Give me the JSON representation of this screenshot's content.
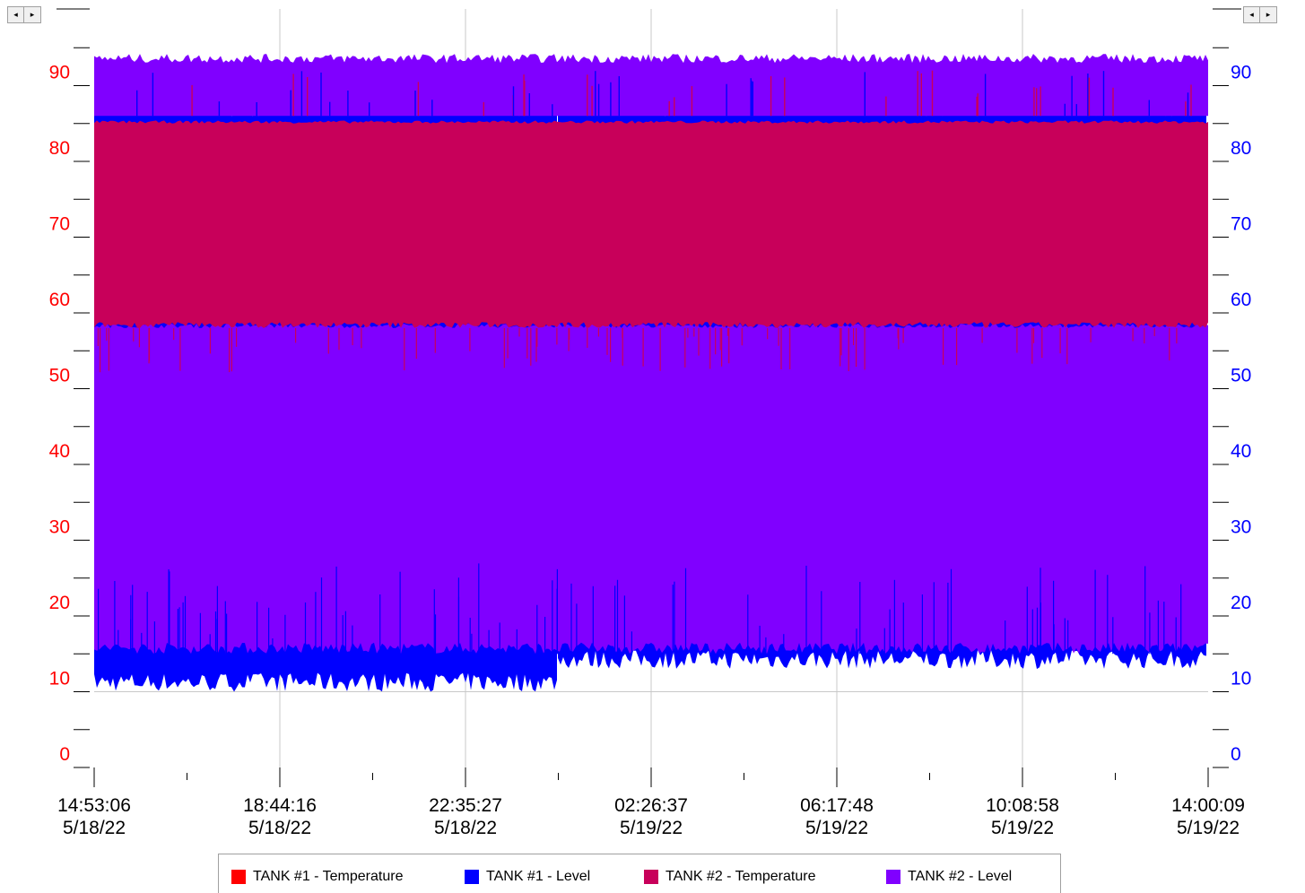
{
  "chart_data": {
    "type": "area",
    "x_ticks": [
      {
        "time": "14:53:06",
        "date": "5/18/22"
      },
      {
        "time": "18:44:16",
        "date": "5/18/22"
      },
      {
        "time": "22:35:27",
        "date": "5/18/22"
      },
      {
        "time": "02:26:37",
        "date": "5/19/22"
      },
      {
        "time": "06:17:48",
        "date": "5/19/22"
      },
      {
        "time": "10:08:58",
        "date": "5/19/22"
      },
      {
        "time": "14:00:09",
        "date": "5/19/22"
      }
    ],
    "x_range": [
      "5/18/22 14:53:06",
      "5/19/22 14:00:09"
    ],
    "left_axis": {
      "ticks": [
        "0",
        "10",
        "20",
        "30",
        "40",
        "50",
        "60",
        "70",
        "80",
        "90"
      ],
      "ylim": [
        0,
        95
      ],
      "color": "#ff0000"
    },
    "right_axis": {
      "ticks": [
        "0",
        "10",
        "20",
        "30",
        "40",
        "50",
        "60",
        "70",
        "80",
        "90"
      ],
      "ylim": [
        0,
        95
      ],
      "color": "#0000ff"
    },
    "grid": "vertical",
    "legend_position": "bottom",
    "series": [
      {
        "name": "TANK #1 - Temperature",
        "color": "#ff0000",
        "axis": "left",
        "band": [
          85,
          93
        ]
      },
      {
        "name": "TANK #1 - Level",
        "color": "#0000ff",
        "axis": "right",
        "band_segments": [
          {
            "from": "5/18/22 14:53:06",
            "to": "5/19/22 00:30:00",
            "low": 11,
            "high": 86
          },
          {
            "from": "5/19/22 00:30:00",
            "to": "5/19/22 14:00:09",
            "low": 14,
            "high": 86
          }
        ]
      },
      {
        "name": "TANK #2 - Temperature",
        "color": "#c8005a",
        "axis": "left",
        "band": [
          58,
          85
        ]
      },
      {
        "name": "TANK #2 - Level",
        "color": "#8000ff",
        "axis": "right",
        "bands": [
          [
            15,
            58
          ],
          [
            86,
            93
          ]
        ]
      }
    ]
  },
  "legend": [
    {
      "label": "TANK #1 - Temperature",
      "color": "#ff0000"
    },
    {
      "label": "TANK #1 - Level",
      "color": "#0000ff"
    },
    {
      "label": "TANK #2 - Temperature",
      "color": "#c8005a"
    },
    {
      "label": "TANK #2 - Level",
      "color": "#8000ff"
    }
  ],
  "scroll_left": {
    "left_glyph": "◂",
    "right_glyph": "▸"
  },
  "scroll_right": {
    "left_glyph": "◂",
    "right_glyph": "▸"
  }
}
